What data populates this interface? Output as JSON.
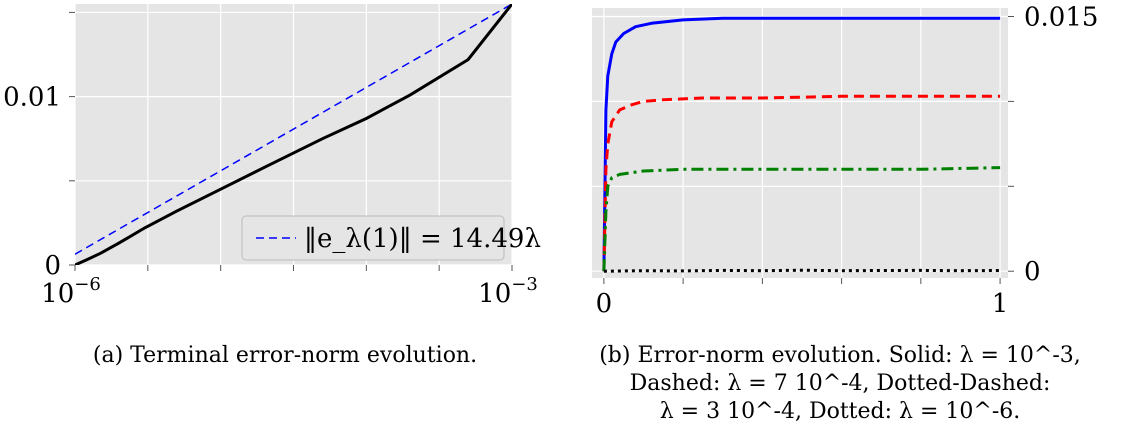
{
  "chart_data": [
    {
      "type": "line",
      "caption": "(a) Terminal error-norm evolution.",
      "x_scale": "log",
      "xlim": [
        1e-06,
        0.001
      ],
      "ylim": [
        0,
        0.0155
      ],
      "x_tick_labels": [
        "10^-6",
        "10^-3"
      ],
      "y_tick_labels": [
        "0",
        "0.01"
      ],
      "grid": true,
      "legend": {
        "placement": "bottom-right",
        "entries": [
          "‖e_λ(1)‖ = 14.49λ"
        ]
      },
      "series": [
        {
          "name": "‖e_λ(1)‖ = 14.49λ",
          "style": "dashed",
          "color": "#0000ff",
          "x": [
            1e-06,
            0.001
          ],
          "y": [
            0.00064,
            0.0155
          ]
        },
        {
          "style": "solid",
          "color": "#000000",
          "x": [
            1e-06,
            1.2e-06,
            1.5e-06,
            2e-06,
            3e-06,
            5e-06,
            1e-05,
            2e-05,
            5e-05,
            0.0001,
            0.0002,
            0.0005,
            0.001
          ],
          "y": [
            0.0,
            0.0003,
            0.0007,
            0.0013,
            0.0022,
            0.0032,
            0.0045,
            0.0058,
            0.0075,
            0.0087,
            0.0101,
            0.0122,
            0.0155
          ]
        }
      ]
    },
    {
      "type": "line",
      "caption_lines": [
        "(b) Error-norm evolution. Solid: λ = 10^-3,",
        "Dashed: λ = 7 10^-4, Dotted-Dashed:",
        "λ = 3 10^-4, Dotted: λ = 10^-6."
      ],
      "xlim": [
        -0.03,
        1.02
      ],
      "ylim": [
        -0.0004,
        0.0155
      ],
      "x_tick_labels": [
        "0",
        "1"
      ],
      "y_tick_labels": [
        "0",
        "0.015"
      ],
      "y_axis_side": "right",
      "grid": true,
      "series": [
        {
          "name": "Solid: λ = 10^-3",
          "style": "solid",
          "color": "#0000ff",
          "x": [
            0,
            0.005,
            0.01,
            0.02,
            0.03,
            0.05,
            0.08,
            0.12,
            0.2,
            0.3,
            0.5,
            0.7,
            1.0
          ],
          "y": [
            0,
            0.0095,
            0.0115,
            0.0128,
            0.0135,
            0.014,
            0.0144,
            0.0146,
            0.0148,
            0.0149,
            0.0149,
            0.0149,
            0.0149
          ]
        },
        {
          "name": "Dashed: λ = 7 10^-4",
          "style": "dashed",
          "color": "#ff0000",
          "x": [
            0,
            0.005,
            0.01,
            0.02,
            0.04,
            0.07,
            0.1,
            0.15,
            0.25,
            0.4,
            0.6,
            0.8,
            1.0
          ],
          "y": [
            0,
            0.006,
            0.0075,
            0.0088,
            0.0095,
            0.0098,
            0.01,
            0.0101,
            0.0102,
            0.0102,
            0.0103,
            0.0103,
            0.0103
          ]
        },
        {
          "name": "Dotted-Dashed: λ = 3 10^-4",
          "style": "dashdot",
          "color": "#008000",
          "x": [
            0,
            0.005,
            0.01,
            0.02,
            0.04,
            0.07,
            0.1,
            0.2,
            0.4,
            0.6,
            0.8,
            1.0
          ],
          "y": [
            0,
            0.0035,
            0.005,
            0.0055,
            0.0057,
            0.0058,
            0.0059,
            0.006,
            0.006,
            0.006,
            0.006,
            0.0061
          ]
        },
        {
          "name": "Dotted: λ = 10^-6",
          "style": "dotted",
          "color": "#000000",
          "x": [
            0,
            0.1,
            0.2,
            0.3,
            0.4,
            0.5,
            0.6,
            0.7,
            0.8,
            0.9,
            1.0
          ],
          "y": [
            0.0,
            3e-05,
            2e-05,
            5e-05,
            3e-05,
            6e-05,
            3e-05,
            4e-05,
            5e-05,
            3e-05,
            4e-05
          ]
        }
      ]
    }
  ],
  "colors": {
    "plot_background": "#e5e5e5",
    "grid": "#ffffff"
  }
}
